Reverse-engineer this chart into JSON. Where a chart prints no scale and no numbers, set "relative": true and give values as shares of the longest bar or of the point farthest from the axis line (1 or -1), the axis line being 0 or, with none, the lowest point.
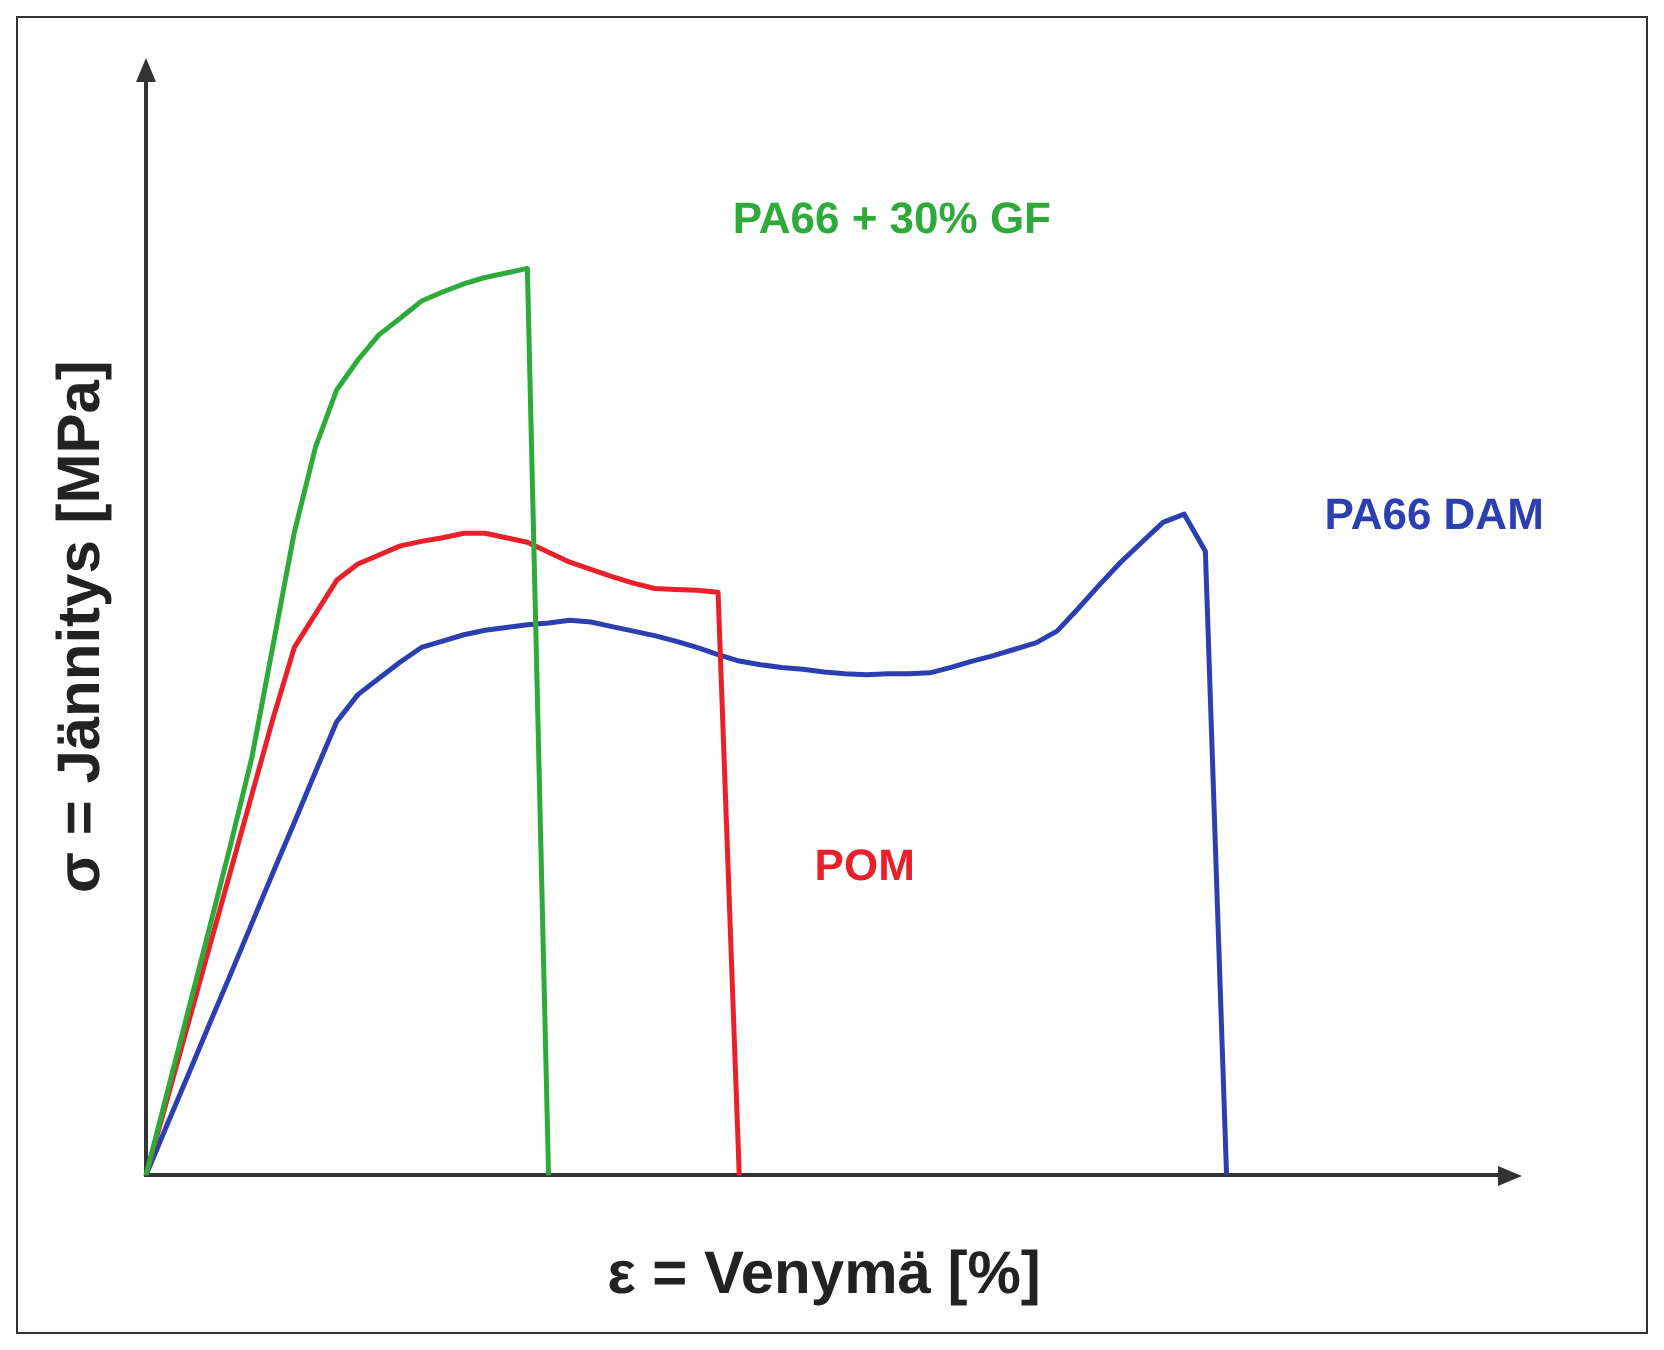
{
  "chart_data": {
    "type": "line",
    "relative": true,
    "xlabel": "ε = Venymä [%]",
    "ylabel": "σ = Jännitys [MPa]",
    "legend": false,
    "grid": false,
    "marker": "none",
    "line_style": "solid",
    "categories": [
      null,
      null,
      null,
      null,
      null,
      null,
      null,
      null,
      null,
      null,
      null,
      null,
      null,
      null,
      null,
      null,
      null,
      null,
      null,
      null,
      null,
      null,
      null,
      null,
      null,
      null,
      null,
      null,
      null,
      null,
      null,
      null,
      null,
      null,
      null,
      null,
      null,
      null,
      null,
      null,
      null,
      null,
      null,
      null,
      null,
      null,
      null,
      null,
      null,
      null,
      null,
      null,
      null,
      null,
      null,
      null,
      null,
      null,
      null,
      null,
      null,
      null,
      null,
      null,
      null
    ],
    "series": [
      {
        "name": "PA66 + 30% GF",
        "color": "#2eaa3a",
        "values": [
          0,
          0.091,
          0.182,
          0.273,
          0.365,
          0.461,
          0.585,
          0.709,
          0.803,
          0.866,
          0.899,
          0.927,
          0.945,
          0.964,
          0.974,
          0.983,
          0.99,
          0.995,
          1,
          0,
          null,
          null,
          null,
          null,
          null,
          null,
          null,
          null,
          null,
          null,
          null,
          null,
          null,
          null,
          null,
          null,
          null,
          null,
          null,
          null,
          null,
          null,
          null,
          null,
          null,
          null,
          null,
          null,
          null,
          null,
          null,
          null,
          null,
          null,
          null,
          null,
          null,
          null,
          null,
          null,
          null,
          null,
          null,
          null,
          null
        ]
      },
      {
        "name": "POM",
        "color": "#e8202a",
        "values": [
          0,
          0.084,
          0.168,
          0.252,
          0.336,
          0.42,
          0.504,
          0.582,
          0.619,
          0.656,
          0.674,
          0.684,
          0.694,
          0.699,
          0.703,
          0.708,
          0.708,
          0.703,
          0.698,
          0.687,
          0.676,
          0.668,
          0.66,
          0.653,
          0.647,
          0.646,
          0.645,
          0.643,
          0,
          null,
          null,
          null,
          null,
          null,
          null,
          null,
          null,
          null,
          null,
          null,
          null,
          null,
          null,
          null,
          null,
          null,
          null,
          null,
          null,
          null,
          null,
          null,
          null,
          null,
          null,
          null,
          null,
          null,
          null,
          null,
          null,
          null,
          null,
          null,
          null
        ]
      },
      {
        "name": "PA66 DAM",
        "color": "#2b3fb0",
        "values": [
          0,
          0.056,
          0.111,
          0.167,
          0.222,
          0.278,
          0.334,
          0.389,
          0.445,
          0.5,
          0.53,
          0.548,
          0.566,
          0.582,
          0.589,
          0.596,
          0.601,
          0.604,
          0.607,
          0.609,
          0.612,
          0.61,
          0.605,
          0.6,
          0.595,
          0.589,
          0.582,
          0.574,
          0.567,
          0.563,
          0.56,
          0.558,
          0.555,
          0.553,
          0.552,
          0.553,
          0.553,
          0.554,
          0.56,
          0.567,
          0.573,
          0.58,
          0.587,
          0.6,
          0.625,
          0.651,
          0.676,
          0.698,
          0.72,
          0.729,
          0.688,
          0,
          null,
          null,
          null,
          null,
          null,
          null,
          null,
          null,
          null,
          null,
          null,
          null,
          null
        ]
      }
    ]
  }
}
